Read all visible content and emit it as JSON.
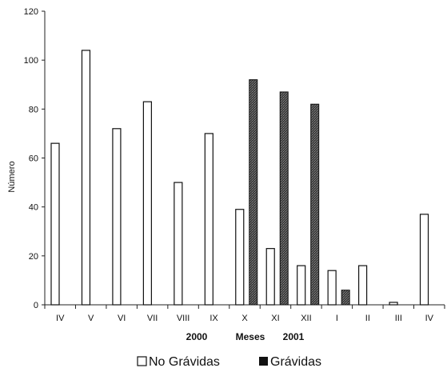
{
  "chart_data": {
    "type": "bar",
    "categories": [
      "IV",
      "V",
      "VI",
      "VII",
      "VIII",
      "IX",
      "X",
      "XI",
      "XII",
      "I",
      "II",
      "III",
      "IV"
    ],
    "series": [
      {
        "name": "No Grávidas",
        "values": [
          66,
          104,
          72,
          83,
          50,
          70,
          39,
          23,
          16,
          14,
          16,
          1,
          37
        ],
        "color": "#ffffff"
      },
      {
        "name": "Grávidas",
        "values": [
          0,
          0,
          0,
          0,
          0,
          0,
          92,
          87,
          82,
          6,
          0,
          0,
          0
        ],
        "color": "#3a3a3a"
      }
    ],
    "title": "",
    "xlabel_left": "2000",
    "xlabel": "Meses",
    "xlabel_right": "2001",
    "ylabel": "Número",
    "ylim": [
      0,
      120
    ],
    "yticks": [
      0,
      20,
      40,
      60,
      80,
      100,
      120
    ],
    "grid": false,
    "legend_position": "bottom"
  }
}
